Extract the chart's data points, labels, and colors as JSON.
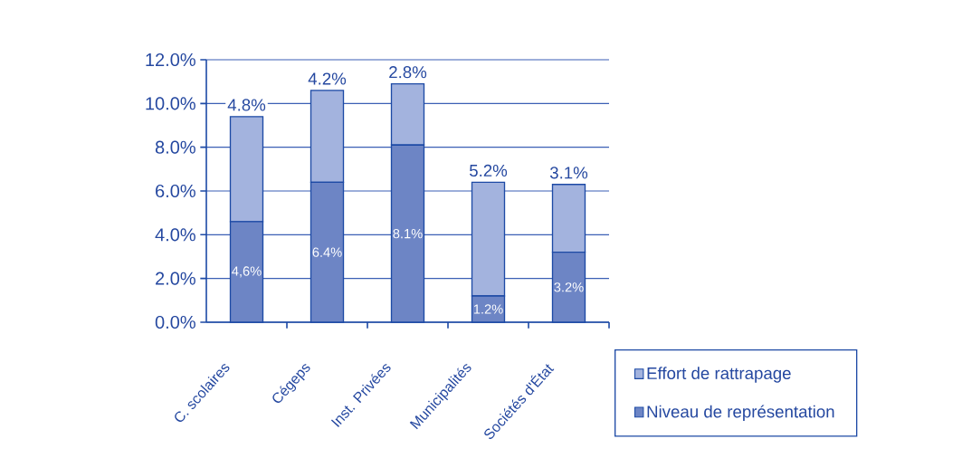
{
  "chart_data": {
    "type": "bar",
    "stacked": true,
    "categories": [
      "C. scolaires",
      "Cégeps",
      "Inst. Privées",
      "Municipalités",
      "Sociétés d'État"
    ],
    "series": [
      {
        "name": "Niveau de représentation",
        "color": "#6d85c5",
        "values": [
          4.6,
          6.4,
          8.1,
          1.2,
          3.2
        ],
        "value_labels": [
          "4,6%",
          "6.4%",
          "8.1%",
          "1.2%",
          "3.2%"
        ]
      },
      {
        "name": "Effort de rattrapage",
        "color": "#a3b3de",
        "values": [
          4.8,
          4.2,
          2.8,
          5.2,
          3.1
        ],
        "value_labels": [
          "4.8%",
          "4.2%",
          "2.8%",
          "5.2%",
          "3.1%"
        ]
      }
    ],
    "ylim": [
      0,
      12
    ],
    "yticks": [
      {
        "value": 0,
        "label": "0.0%"
      },
      {
        "value": 2,
        "label": "2.0%"
      },
      {
        "value": 4,
        "label": "4.0%"
      },
      {
        "value": 6,
        "label": "6.0%"
      },
      {
        "value": 8,
        "label": "8.0%"
      },
      {
        "value": 10,
        "label": "10.0%"
      },
      {
        "value": 12,
        "label": "12.0%"
      }
    ],
    "grid": "y",
    "legend": "bottom right"
  }
}
